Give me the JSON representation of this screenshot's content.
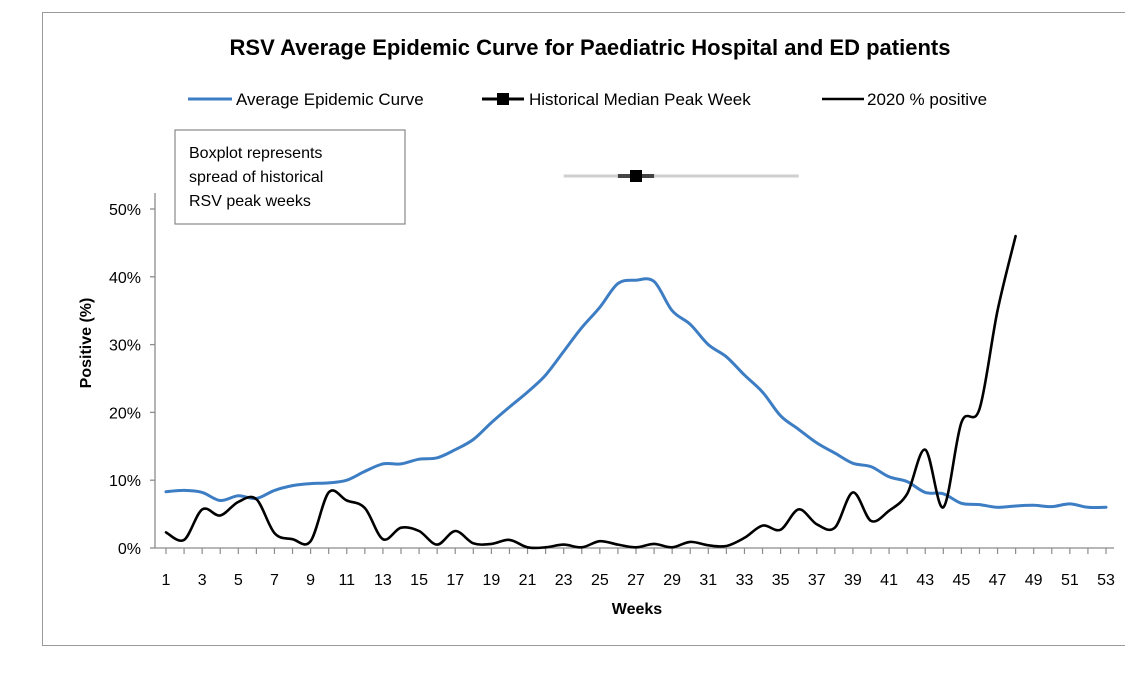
{
  "chart_data": {
    "type": "line",
    "title": "RSV Average Epidemic Curve for Paediatric Hospital and ED patients",
    "xlabel": "Weeks",
    "ylabel": "Positive (%)",
    "xlim": [
      1,
      53
    ],
    "ylim": [
      0,
      50
    ],
    "x_ticks": [
      1,
      3,
      5,
      7,
      9,
      11,
      13,
      15,
      17,
      19,
      21,
      23,
      25,
      27,
      29,
      31,
      33,
      35,
      37,
      39,
      41,
      43,
      45,
      47,
      49,
      51,
      53
    ],
    "y_ticks": [
      "0%",
      "10%",
      "20%",
      "30%",
      "40%",
      "50%"
    ],
    "legend": [
      "Average Epidemic Curve",
      "Historical Median Peak Week",
      "2020 % positive"
    ],
    "annotation": "Boxplot represents spread of historical RSV peak weeks",
    "series": [
      {
        "name": "Average Epidemic Curve",
        "color": "#3d7dc3",
        "x": [
          1,
          2,
          3,
          4,
          5,
          6,
          7,
          8,
          9,
          10,
          11,
          12,
          13,
          14,
          15,
          16,
          17,
          18,
          19,
          20,
          21,
          22,
          23,
          24,
          25,
          26,
          27,
          28,
          29,
          30,
          31,
          32,
          33,
          34,
          35,
          36,
          37,
          38,
          39,
          40,
          41,
          42,
          43,
          44,
          45,
          46,
          47,
          48,
          49,
          50,
          51,
          52,
          53
        ],
        "values": [
          8.3,
          8.5,
          8.2,
          7.0,
          7.7,
          7.3,
          8.5,
          9.2,
          9.5,
          9.6,
          10.0,
          11.3,
          12.4,
          12.4,
          13.1,
          13.3,
          14.5,
          16.0,
          18.5,
          20.8,
          23.0,
          25.5,
          29.0,
          32.5,
          35.5,
          39.0,
          39.5,
          39.3,
          35.0,
          33.0,
          30.0,
          28.2,
          25.5,
          23.0,
          19.5,
          17.5,
          15.5,
          14.0,
          12.5,
          12.0,
          10.5,
          9.8,
          8.2,
          8.0,
          6.6,
          6.4,
          6.0,
          6.2,
          6.3,
          6.1,
          6.5,
          6.0,
          6.0
        ]
      },
      {
        "name": "2020 % positive",
        "color": "#000000",
        "x": [
          1,
          2,
          3,
          4,
          5,
          6,
          7,
          8,
          9,
          10,
          11,
          12,
          13,
          14,
          15,
          16,
          17,
          18,
          19,
          20,
          21,
          22,
          23,
          24,
          25,
          26,
          27,
          28,
          29,
          30,
          31,
          32,
          33,
          34,
          35,
          36,
          37,
          38,
          39,
          40,
          41,
          42,
          43,
          44,
          45,
          46,
          47,
          48
        ],
        "values": [
          2.3,
          1.2,
          5.7,
          4.8,
          6.8,
          7.2,
          2.2,
          1.3,
          1.0,
          8.2,
          7.0,
          5.9,
          1.3,
          3.0,
          2.5,
          0.5,
          2.5,
          0.7,
          0.6,
          1.2,
          0.1,
          0.1,
          0.5,
          0.1,
          1.0,
          0.5,
          0.1,
          0.6,
          0.1,
          0.9,
          0.4,
          0.3,
          1.5,
          3.3,
          2.7,
          5.7,
          3.5,
          3.0,
          8.2,
          4.0,
          5.5,
          8.0,
          14.5,
          6.0,
          18.5,
          20.5,
          35.0,
          46.0
        ]
      }
    ],
    "boxplot": {
      "name": "Historical Median Peak Week",
      "whisker_low": 23,
      "q1": 26,
      "median": 27,
      "q3": 28,
      "whisker_high": 36
    }
  }
}
